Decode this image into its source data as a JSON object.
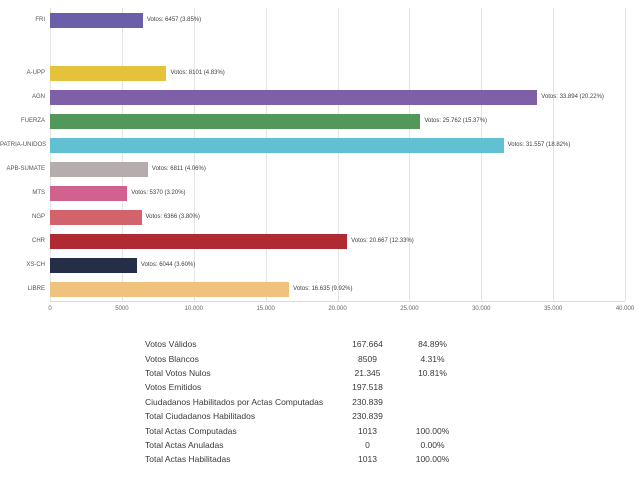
{
  "chart_data": {
    "type": "bar",
    "orientation": "horizontal",
    "title": "",
    "xlabel": "",
    "ylabel": "",
    "xlim": [
      0,
      40000
    ],
    "grid": true,
    "x_ticks": [
      "0",
      "5000",
      "10.000",
      "15.000",
      "20.000",
      "25.000",
      "30.000",
      "35.000",
      "40.000"
    ],
    "x_tick_values": [
      0,
      5000,
      10000,
      15000,
      20000,
      25000,
      30000,
      35000,
      40000
    ],
    "bars": [
      {
        "category": "FRI",
        "value": 6457,
        "label": "Votos: 6457 (3.85%)",
        "color": "#6a5fa8"
      },
      {
        "category": "A-UPP",
        "value": 8101,
        "label": "Votos: 8101 (4.83%)",
        "color": "#e5c23c"
      },
      {
        "category": "AGN",
        "value": 33894,
        "label": "Votos: 33.894 (20.22%)",
        "color": "#7e5fa8"
      },
      {
        "category": "FUERZA",
        "value": 25762,
        "label": "Votos: 25.762 (15.37%)",
        "color": "#52985a"
      },
      {
        "category": "PATRIA-UNIDOS",
        "value": 31557,
        "label": "Votos: 31.557 (18.82%)",
        "color": "#61c1d3"
      },
      {
        "category": "APB-SUMATE",
        "value": 6811,
        "label": "Votos: 6811 (4.06%)",
        "color": "#b5adad"
      },
      {
        "category": "MTS",
        "value": 5370,
        "label": "Votos: 5370 (3.20%)",
        "color": "#d1618f"
      },
      {
        "category": "NGP",
        "value": 6366,
        "label": "Votos: 6366 (3.80%)",
        "color": "#d2636a"
      },
      {
        "category": "CHR",
        "value": 20667,
        "label": "Votos: 20.667 (12.33%)",
        "color": "#b02a33"
      },
      {
        "category": "XS-CH",
        "value": 6044,
        "label": "Votos: 6044 (3.60%)",
        "color": "#252e47"
      },
      {
        "category": "LIBRE",
        "value": 16635,
        "label": "Votos: 16.635 (9.92%)",
        "color": "#efc37d"
      }
    ]
  },
  "summary_table": {
    "rows": [
      {
        "label": "Votos Válidos",
        "value": "167.664",
        "percent": "84.89%"
      },
      {
        "label": "Votos Blancos",
        "value": "8509",
        "percent": "4.31%"
      },
      {
        "label": "Total Votos Nulos",
        "value": "21.345",
        "percent": "10.81%"
      },
      {
        "label": "Votos Emitidos",
        "value": "197.518",
        "percent": ""
      },
      {
        "label": "Ciudadanos Habilitados por Actas Computadas",
        "value": "230.839",
        "percent": ""
      },
      {
        "label": "Total Ciudadanos Habilitados",
        "value": "230.839",
        "percent": ""
      },
      {
        "label": "Total Actas Computadas",
        "value": "1013",
        "percent": "100.00%"
      },
      {
        "label": "Total Actas Anuladas",
        "value": "0",
        "percent": "0.00%"
      },
      {
        "label": "Total Actas Habilitadas",
        "value": "1013",
        "percent": "100.00%"
      }
    ]
  }
}
